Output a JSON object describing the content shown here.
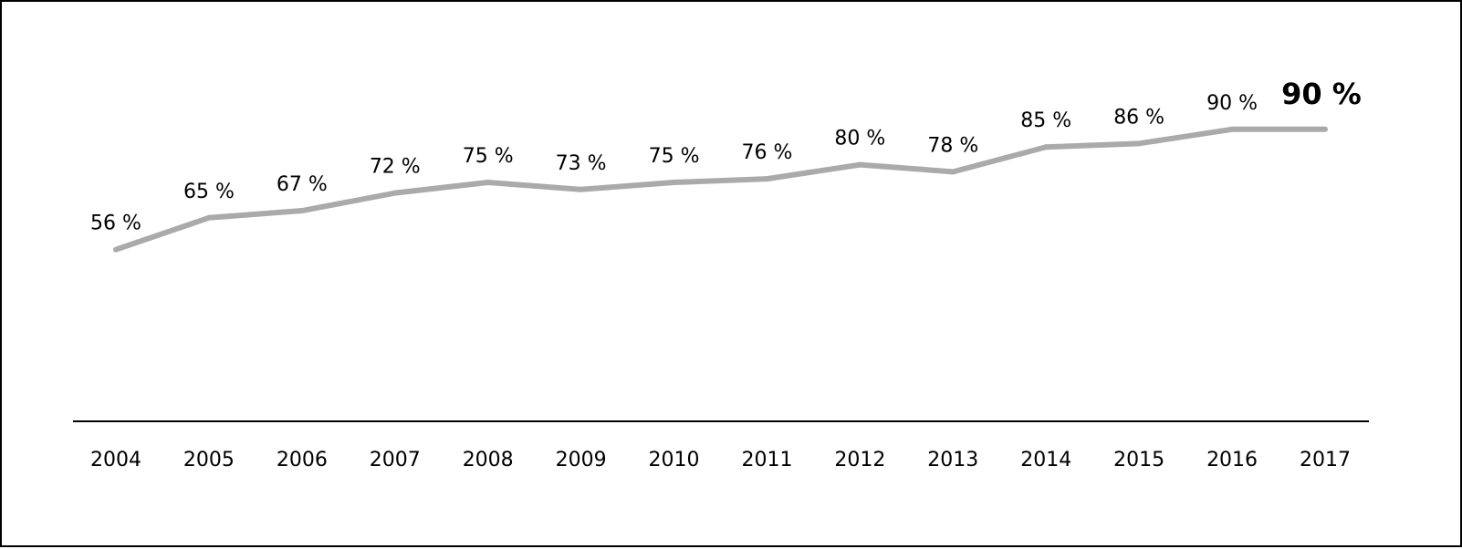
{
  "chart_data": {
    "type": "line",
    "title": "",
    "xlabel": "",
    "ylabel": "",
    "categories": [
      "2004",
      "2005",
      "2006",
      "2007",
      "2008",
      "2009",
      "2010",
      "2011",
      "2012",
      "2013",
      "2014",
      "2015",
      "2016",
      "2017"
    ],
    "values": [
      56,
      65,
      67,
      72,
      75,
      73,
      75,
      76,
      80,
      78,
      85,
      86,
      90,
      90
    ],
    "data_labels": [
      "56 %",
      "65 %",
      "67 %",
      "72 %",
      "75 %",
      "73 %",
      "75 %",
      "76 %",
      "80 %",
      "78 %",
      "85 %",
      "86 %",
      "90 %",
      "90 %"
    ],
    "highlight_index": 13,
    "ylim": [
      0,
      100
    ],
    "line_color": "#aaaaaa",
    "axis_color": "#000000",
    "grid": false,
    "legend": "none"
  }
}
